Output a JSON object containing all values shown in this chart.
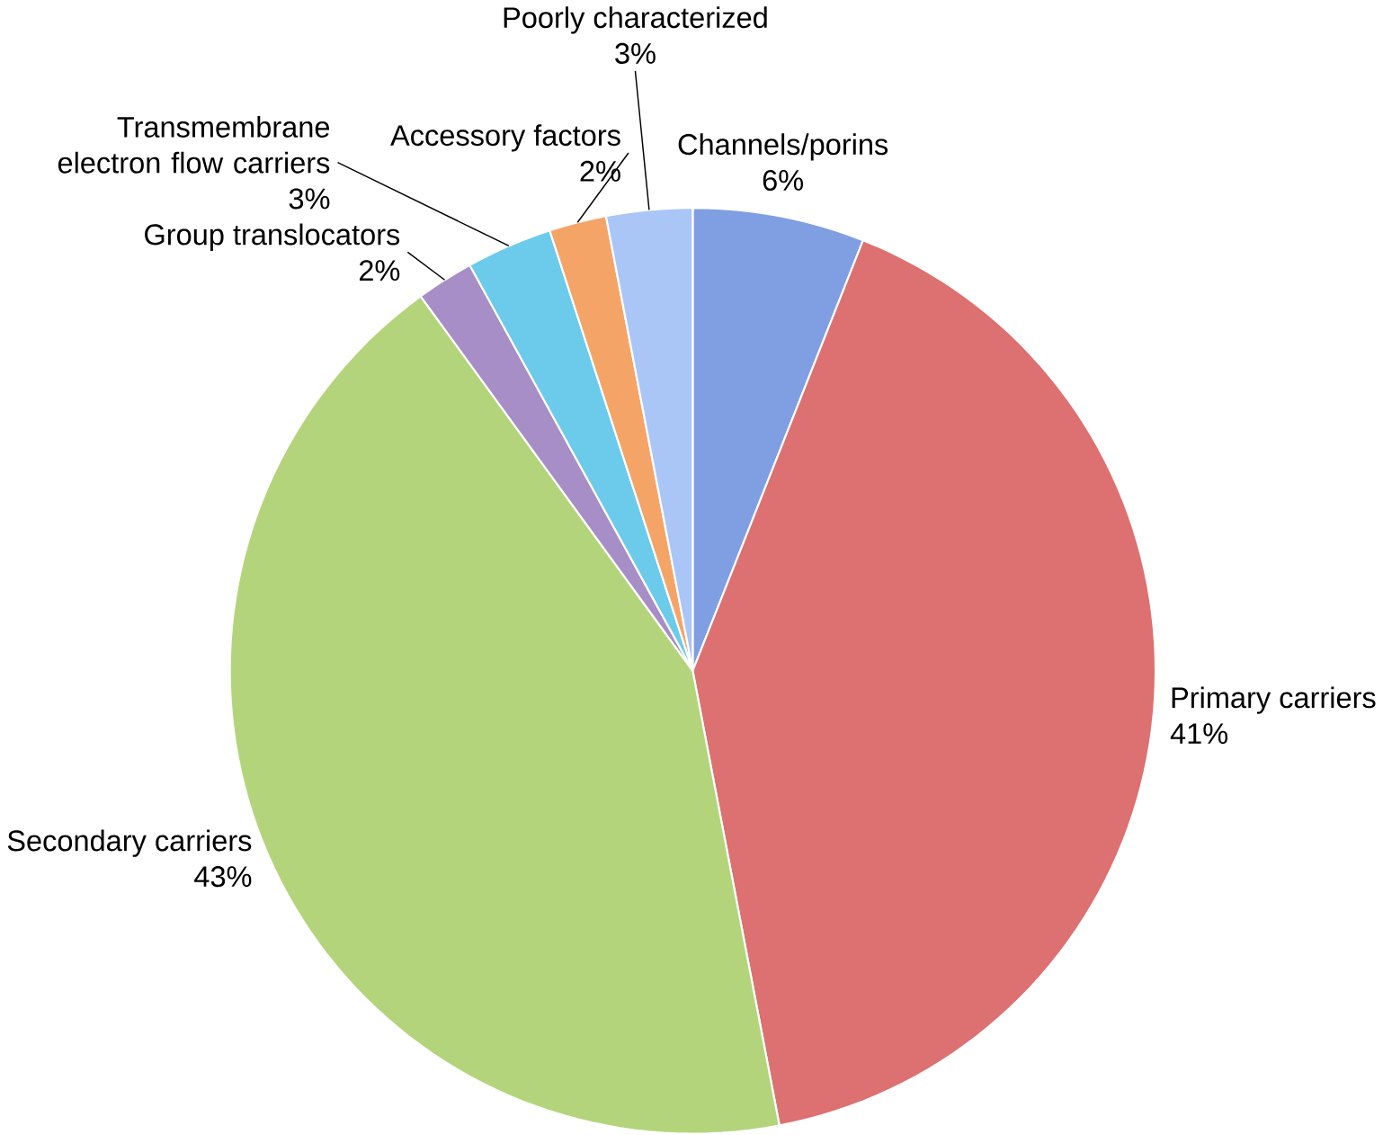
{
  "chart_data": {
    "type": "pie",
    "categories": [
      "Channels/porins",
      "Primary carriers",
      "Secondary carriers",
      "Group translocators",
      "Transmembrane electron flow carriers",
      "Accessory factors",
      "Poorly characterized"
    ],
    "values": [
      6,
      41,
      43,
      2,
      3,
      2,
      3
    ],
    "value_labels": [
      "6%",
      "41%",
      "43%",
      "2%",
      "3%",
      "2%",
      "3%"
    ],
    "colors": [
      "#7f9fe2",
      "#dd7070",
      "#b4d47c",
      "#a78ec6",
      "#6ccbea",
      "#f5a468",
      "#aac6f6"
    ]
  }
}
